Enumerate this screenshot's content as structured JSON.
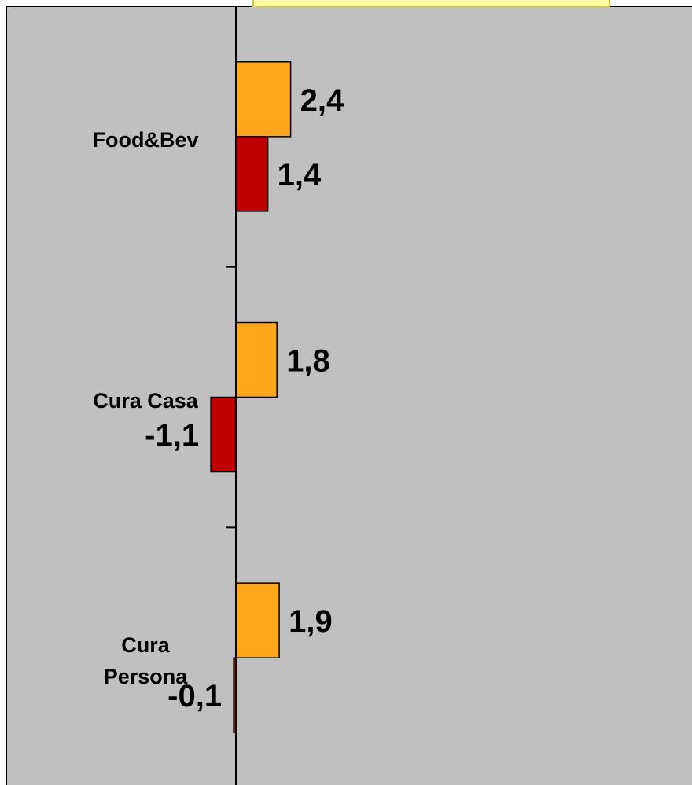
{
  "chart_data": {
    "type": "hbar",
    "categories": [
      "Food&Bev",
      "Cura Casa",
      "Cura Persona"
    ],
    "series": [
      {
        "color": "#ffa61a",
        "values": [
          2.4,
          1.8,
          1.9
        ],
        "value_labels": [
          "2,4",
          "1,8",
          "1,9"
        ]
      },
      {
        "color": "#c00000",
        "values": [
          1.4,
          -1.1,
          -0.1
        ],
        "value_labels": [
          "1,4",
          "-1,1",
          "-0,1"
        ]
      }
    ],
    "xlim": [
      -10,
      20
    ]
  }
}
